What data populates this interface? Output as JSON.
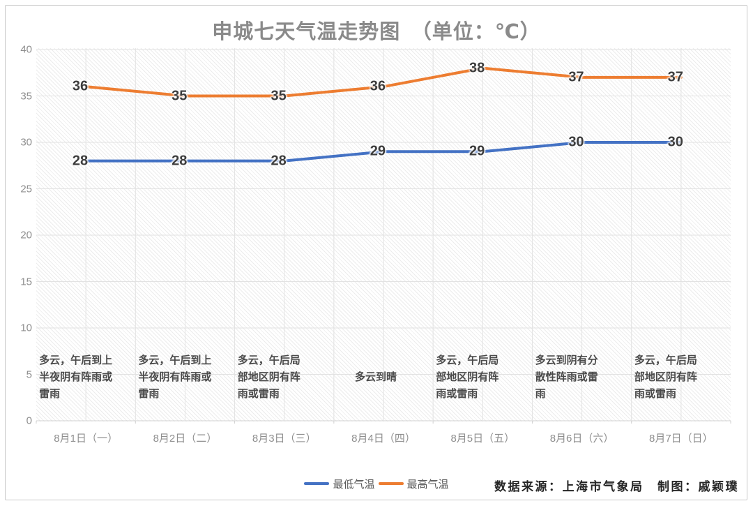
{
  "title": "申城七天气温走势图　（单位：℃）",
  "chart_data": {
    "type": "line",
    "categories": [
      "8月1日（一）",
      "8月2日（二）",
      "8月3日（三）",
      "8月4日（四）",
      "8月5日（五）",
      "8月6日（六）",
      "8月7日（日）"
    ],
    "series": [
      {
        "name": "最低气温",
        "color": "#4472C4",
        "values": [
          28,
          28,
          28,
          29,
          29,
          30,
          30
        ]
      },
      {
        "name": "最高气温",
        "color": "#ED7D31",
        "values": [
          36,
          35,
          35,
          36,
          38,
          37,
          37
        ]
      }
    ],
    "ylim": [
      0,
      40
    ],
    "yticks": [
      0,
      5,
      10,
      15,
      20,
      25,
      30,
      35,
      40
    ],
    "grid": "horizontal and vertical major gridlines, hatched plot background",
    "legend_position": "bottom-center",
    "annotations": [
      "多云，午后到上\n半夜阴有阵雨或\n雷雨",
      "多云，午后到上\n半夜阴有阵雨或\n雷雨",
      "多云，午后局\n部地区阴有阵\n雨或雷雨",
      "多云到晴",
      "多云，午后局\n部地区阴有阵\n雨或雷雨",
      "多云到阴有分\n散性阵雨或雷\n雨",
      "多云，午后局\n部地区阴有阵\n雨或雷雨"
    ]
  },
  "legend": {
    "items": [
      {
        "label": "最低气温",
        "color": "#4472C4"
      },
      {
        "label": "最高气温",
        "color": "#ED7D31"
      }
    ]
  },
  "footer": {
    "attribution": "数据来源：上海市气象局　制图：戚颖璞"
  },
  "colors": {
    "min_line": "#4472C4",
    "max_line": "#ED7D31",
    "gridline": "#e2e2e2",
    "axis_line": "#d0d0d0",
    "title_text": "#8a8a8a",
    "axis_text": "#8e8e8e",
    "data_label_text": "#3d3d3d"
  }
}
